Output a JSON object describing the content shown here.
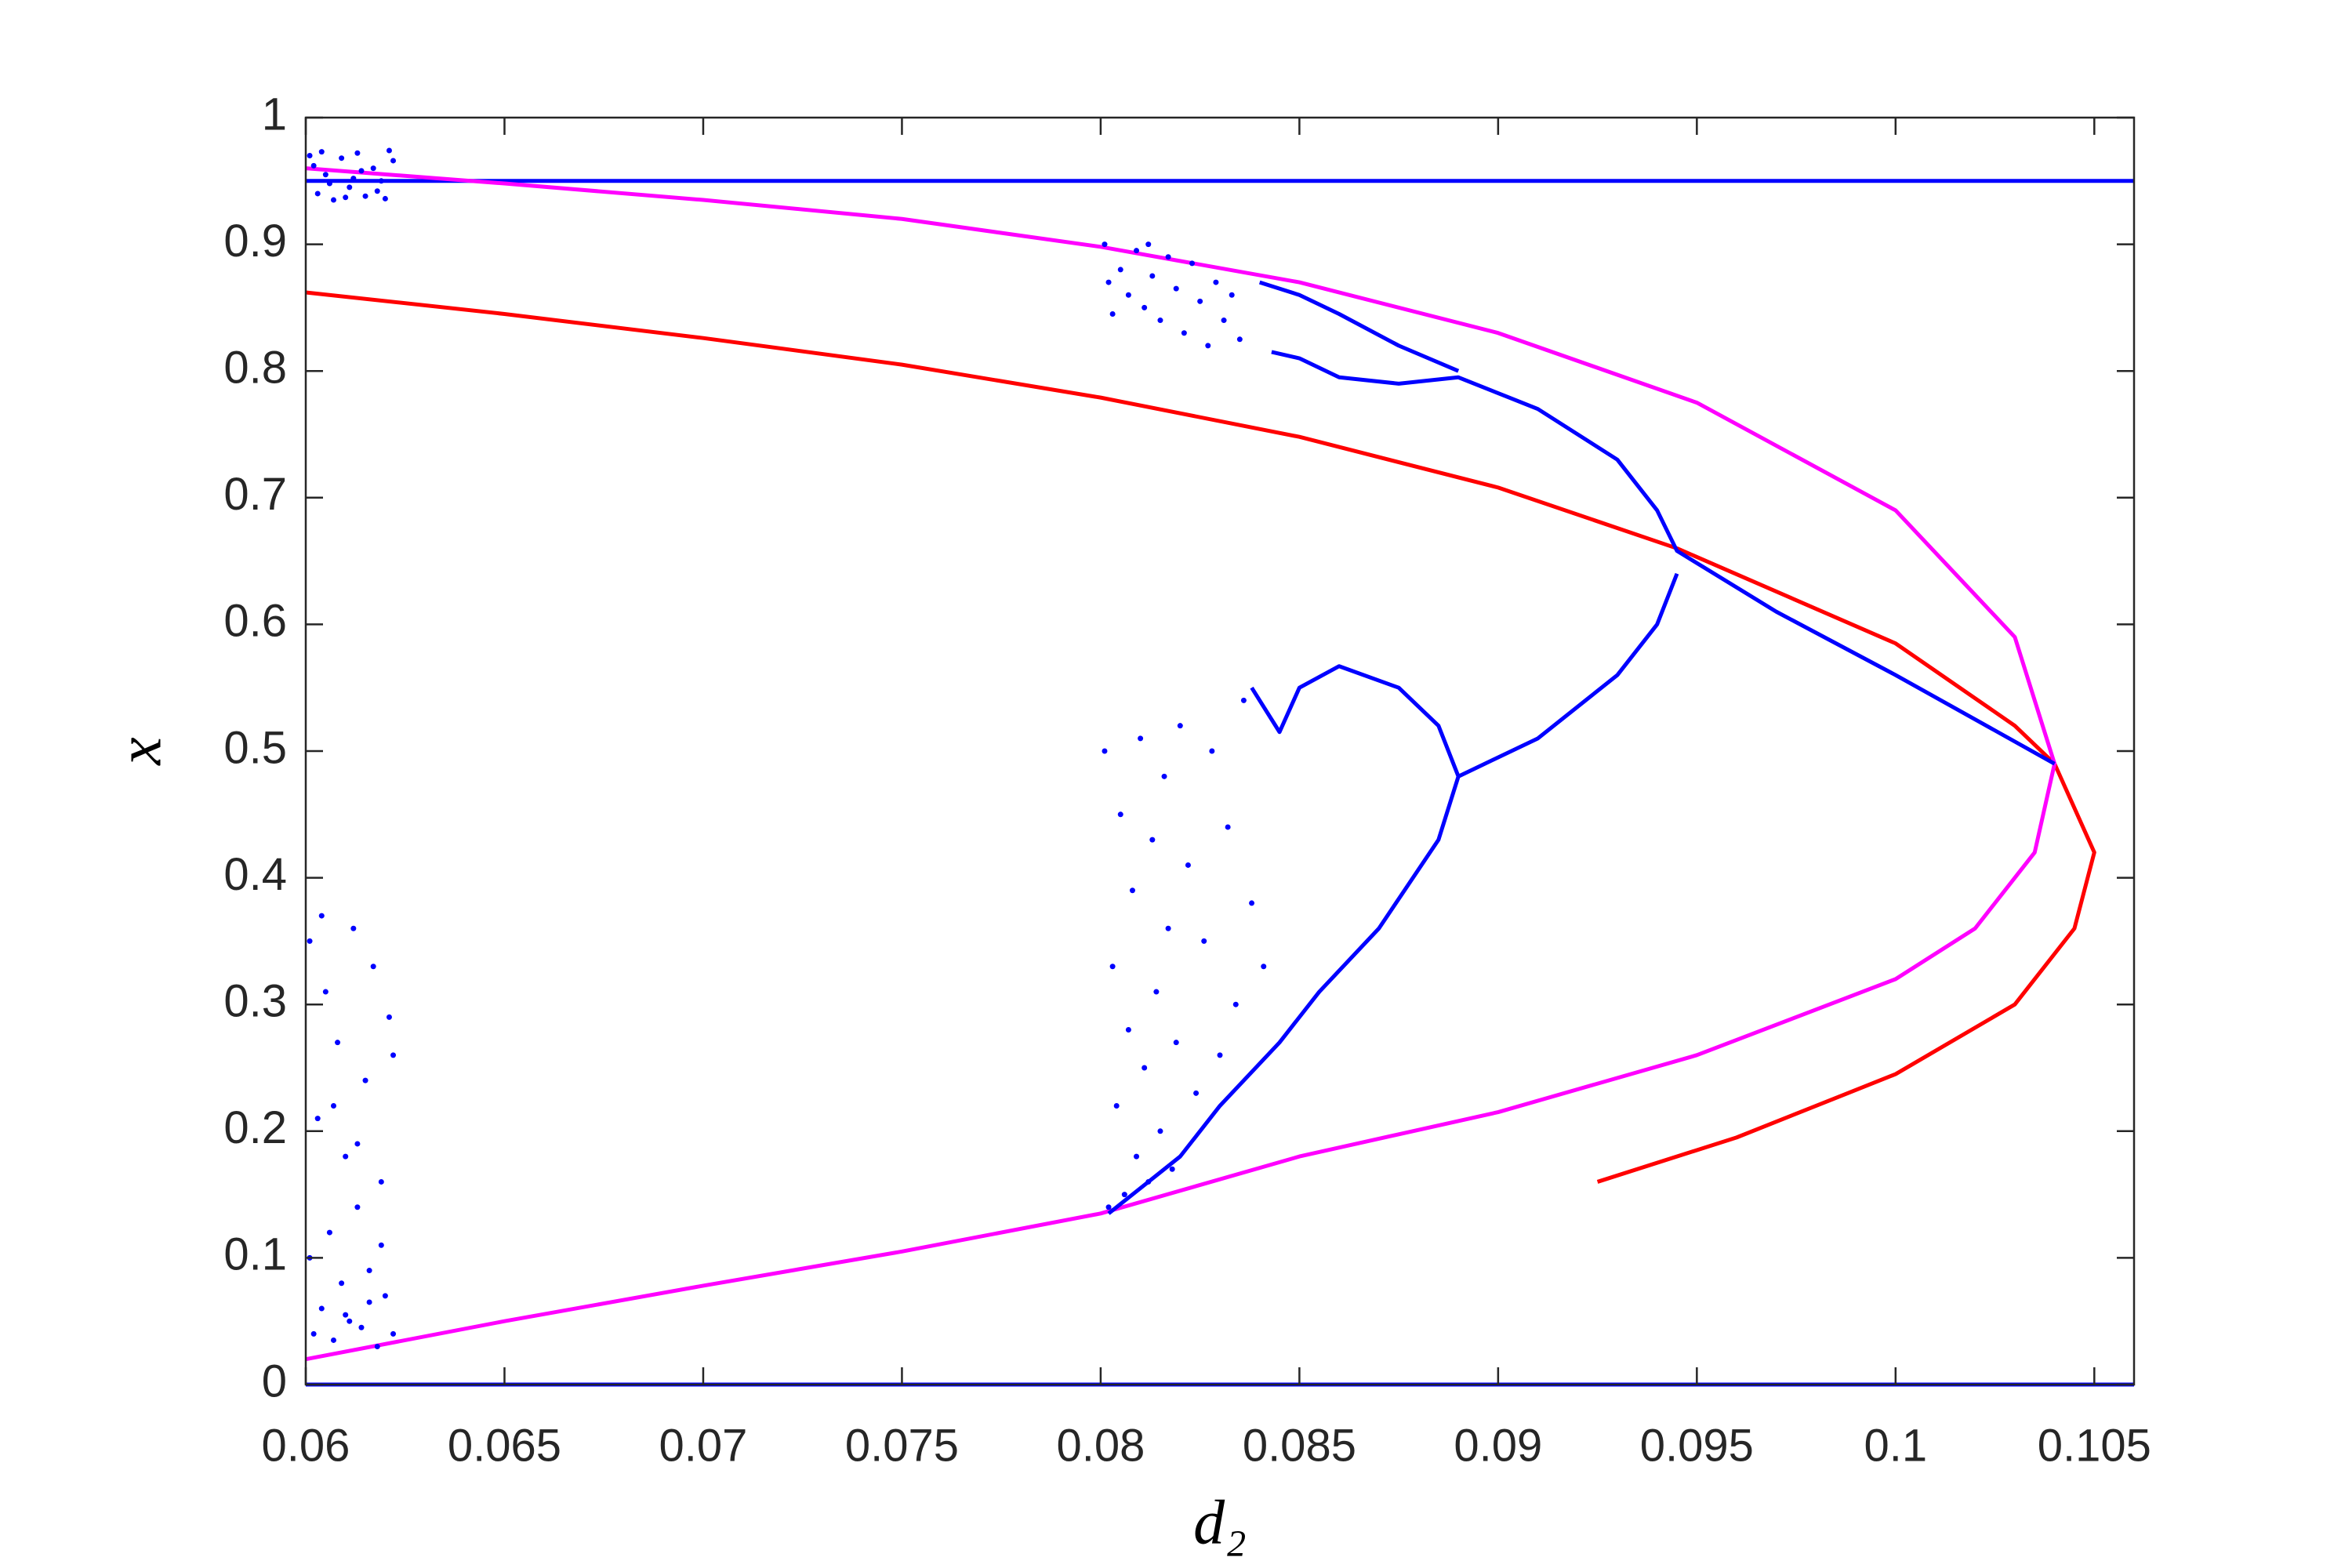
{
  "chart_data": {
    "type": "line",
    "xlabel": "d₂",
    "ylabel": "x",
    "xlim": [
      0.06,
      0.106
    ],
    "ylim": [
      0,
      1
    ],
    "xticks": [
      0.06,
      0.065,
      0.07,
      0.075,
      0.08,
      0.085,
      0.09,
      0.095,
      0.1,
      0.105
    ],
    "yticks": [
      0,
      0.1,
      0.2,
      0.3,
      0.4,
      0.5,
      0.6,
      0.7,
      0.8,
      0.9,
      1
    ],
    "grid": false,
    "series": [
      {
        "color": "#0000ff",
        "style": "line",
        "x": [
          0.06,
          0.106
        ],
        "values": [
          0.95,
          0.95
        ]
      },
      {
        "color": "#0000ff",
        "style": "line",
        "x": [
          0.06,
          0.106
        ],
        "values": [
          0,
          0
        ]
      },
      {
        "color": "#ff0000",
        "style": "line",
        "x": [
          0.06,
          0.065,
          0.07,
          0.075,
          0.08,
          0.085,
          0.09,
          0.0945,
          0.1,
          0.103,
          0.104,
          0.105,
          0.1045,
          0.103,
          0.1,
          0.096,
          0.0925
        ],
        "values": [
          0.862,
          0.845,
          0.826,
          0.805,
          0.779,
          0.748,
          0.708,
          0.66,
          0.585,
          0.52,
          0.49,
          0.42,
          0.36,
          0.3,
          0.245,
          0.195,
          0.16
        ]
      },
      {
        "color": "#ff00ff",
        "style": "line",
        "x": [
          0.06,
          0.065,
          0.07,
          0.075,
          0.08,
          0.085,
          0.09,
          0.095,
          0.1,
          0.103,
          0.104,
          0.1035,
          0.102,
          0.1,
          0.095,
          0.09,
          0.085,
          0.08,
          0.075,
          0.07,
          0.065,
          0.06
        ],
        "values": [
          0.96,
          0.948,
          0.935,
          0.92,
          0.898,
          0.87,
          0.83,
          0.775,
          0.69,
          0.59,
          0.49,
          0.42,
          0.36,
          0.32,
          0.26,
          0.215,
          0.18,
          0.135,
          0.105,
          0.078,
          0.05,
          0.02
        ]
      },
      {
        "color": "#0000ff",
        "style": "line",
        "x": [
          0.104,
          0.1,
          0.097,
          0.0945,
          0.094,
          0.093,
          0.091,
          0.089,
          0.0875,
          0.086,
          0.085,
          0.0843
        ],
        "values": [
          0.49,
          0.56,
          0.61,
          0.658,
          0.69,
          0.73,
          0.77,
          0.795,
          0.79,
          0.795,
          0.81,
          0.815
        ]
      },
      {
        "color": "#0000ff",
        "style": "line",
        "x": [
          0.089,
          0.0875,
          0.086,
          0.085,
          0.084
        ],
        "values": [
          0.8,
          0.82,
          0.845,
          0.86,
          0.87
        ]
      },
      {
        "color": "#0000ff",
        "style": "line",
        "x": [
          0.0945,
          0.094,
          0.093,
          0.091,
          0.089,
          0.0885,
          0.0875,
          0.086,
          0.085,
          0.0845,
          0.0838
        ],
        "values": [
          0.64,
          0.6,
          0.56,
          0.51,
          0.48,
          0.52,
          0.55,
          0.567,
          0.55,
          0.515,
          0.55
        ]
      },
      {
        "color": "#0000ff",
        "style": "line",
        "x": [
          0.089,
          0.0885,
          0.087,
          0.0855,
          0.0845,
          0.083,
          0.082,
          0.081,
          0.0802
        ],
        "values": [
          0.48,
          0.43,
          0.36,
          0.31,
          0.27,
          0.22,
          0.18,
          0.155,
          0.135
        ]
      },
      {
        "color": "#0000ff",
        "style": "points",
        "x": [
          0.0601,
          0.0603,
          0.0605,
          0.0607,
          0.0609,
          0.0611,
          0.0613,
          0.0615,
          0.0617,
          0.0619,
          0.0621,
          0.0602,
          0.0606,
          0.061,
          0.0614,
          0.0618,
          0.0622,
          0.0604,
          0.0612,
          0.062
        ],
        "values": [
          0.97,
          0.94,
          0.955,
          0.935,
          0.968,
          0.945,
          0.972,
          0.938,
          0.96,
          0.95,
          0.974,
          0.962,
          0.948,
          0.937,
          0.958,
          0.942,
          0.966,
          0.973,
          0.952,
          0.936
        ]
      },
      {
        "color": "#0000ff",
        "style": "points",
        "x": [
          0.0601,
          0.0602,
          0.0603,
          0.0604,
          0.0605,
          0.0606,
          0.0607,
          0.0608,
          0.0609,
          0.061,
          0.0611,
          0.0612,
          0.0613,
          0.0614,
          0.0615,
          0.0616,
          0.0617,
          0.0618,
          0.0619,
          0.062,
          0.0621,
          0.0622,
          0.0601,
          0.0604,
          0.0607,
          0.061,
          0.0613,
          0.0616,
          0.0619,
          0.0622
        ],
        "values": [
          0.35,
          0.04,
          0.21,
          0.06,
          0.31,
          0.12,
          0.035,
          0.27,
          0.08,
          0.18,
          0.05,
          0.36,
          0.14,
          0.045,
          0.24,
          0.09,
          0.33,
          0.03,
          0.16,
          0.07,
          0.29,
          0.04,
          0.1,
          0.37,
          0.22,
          0.055,
          0.19,
          0.065,
          0.11,
          0.26
        ]
      },
      {
        "color": "#0000ff",
        "style": "points",
        "x": [
          0.0801,
          0.0802,
          0.0803,
          0.0804,
          0.0805,
          0.0806,
          0.0807,
          0.0808,
          0.0809,
          0.081,
          0.0811,
          0.0812,
          0.0813,
          0.0814,
          0.0815,
          0.0816,
          0.0817,
          0.0818,
          0.0819,
          0.082,
          0.0822,
          0.0824,
          0.0826,
          0.0828,
          0.083,
          0.0832,
          0.0834,
          0.0836,
          0.0838,
          0.0841
        ],
        "values": [
          0.5,
          0.14,
          0.33,
          0.22,
          0.45,
          0.15,
          0.28,
          0.39,
          0.18,
          0.51,
          0.25,
          0.16,
          0.43,
          0.31,
          0.2,
          0.48,
          0.36,
          0.17,
          0.27,
          0.52,
          0.41,
          0.23,
          0.35,
          0.5,
          0.26,
          0.44,
          0.3,
          0.54,
          0.38,
          0.33
        ]
      },
      {
        "color": "#0000ff",
        "style": "points",
        "x": [
          0.0801,
          0.0803,
          0.0805,
          0.0807,
          0.0809,
          0.0811,
          0.0813,
          0.0815,
          0.0817,
          0.0819,
          0.0821,
          0.0823,
          0.0825,
          0.0827,
          0.0829,
          0.0831,
          0.0833,
          0.0835,
          0.0802,
          0.0812
        ],
        "values": [
          0.9,
          0.845,
          0.88,
          0.86,
          0.895,
          0.85,
          0.875,
          0.84,
          0.89,
          0.865,
          0.83,
          0.885,
          0.855,
          0.82,
          0.87,
          0.84,
          0.86,
          0.825,
          0.87,
          0.9
        ]
      }
    ]
  }
}
